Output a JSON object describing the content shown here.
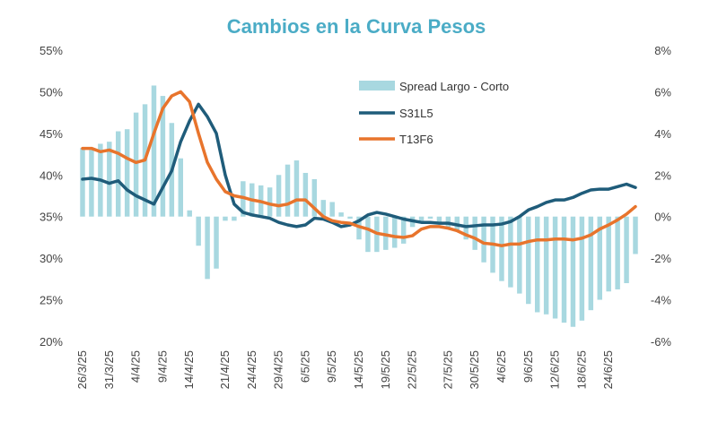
{
  "chart_data": {
    "type": "line",
    "title": "Cambios en la Curva Pesos",
    "xlabel": "",
    "ylabel_left": "",
    "ylabel_right": "",
    "ylim_left": [
      20,
      55
    ],
    "ylim_right": [
      -6,
      8
    ],
    "yticks_left": [
      "20%",
      "25%",
      "30%",
      "35%",
      "40%",
      "45%",
      "50%",
      "55%"
    ],
    "yticks_right": [
      "-6%",
      "-4%",
      "-2%",
      "0%",
      "2%",
      "4%",
      "6%",
      "8%"
    ],
    "x_tick_labels": [
      "26/3/25",
      "31/3/25",
      "4/4/25",
      "9/4/25",
      "14/4/25",
      "21/4/25",
      "24/4/25",
      "29/4/25",
      "6/5/25",
      "9/5/25",
      "14/5/25",
      "19/5/25",
      "22/5/25",
      "27/5/25",
      "30/5/25",
      "4/6/25",
      "9/6/25",
      "12/6/25",
      "18/6/25",
      "24/6/25"
    ],
    "n_points": 63,
    "legend_position": "top-center",
    "colors": {
      "spread": "#a8d8e0",
      "s31l5": "#1f5c7a",
      "t13f6": "#e8742c"
    },
    "series": [
      {
        "name": "Spread Largo - Corto",
        "type": "bar",
        "axis": "right",
        "values": [
          3.3,
          3.2,
          3.5,
          3.6,
          4.1,
          4.2,
          5.0,
          5.4,
          6.3,
          5.8,
          4.5,
          2.8,
          0.3,
          -1.4,
          -3.0,
          -2.5,
          -0.2,
          -0.2,
          1.7,
          1.6,
          1.5,
          1.4,
          2.0,
          2.5,
          2.7,
          2.1,
          1.8,
          0.8,
          0.7,
          0.2,
          -0.1,
          -1.1,
          -1.7,
          -1.7,
          -1.6,
          -1.5,
          -1.3,
          -0.5,
          -0.2,
          -0.1,
          -0.3,
          -0.6,
          -0.7,
          -1.1,
          -1.6,
          -2.2,
          -2.7,
          -3.1,
          -3.4,
          -3.7,
          -4.2,
          -4.6,
          -4.7,
          -4.9,
          -5.1,
          -5.3,
          -5.0,
          -4.5,
          -4.0,
          -3.6,
          -3.5,
          -3.2,
          -1.8
        ]
      },
      {
        "name": "S31L5",
        "type": "line",
        "axis": "left",
        "values": [
          39.5,
          39.6,
          39.4,
          39.0,
          39.3,
          38.2,
          37.5,
          37.0,
          36.5,
          38.5,
          40.5,
          44.0,
          46.5,
          48.5,
          47.0,
          45.0,
          40.0,
          36.5,
          35.5,
          35.2,
          35.0,
          34.8,
          34.3,
          34.0,
          33.8,
          34.0,
          34.8,
          34.7,
          34.3,
          33.8,
          34.0,
          34.5,
          35.2,
          35.5,
          35.3,
          35.0,
          34.7,
          34.5,
          34.3,
          34.3,
          34.2,
          34.2,
          34.0,
          33.8,
          33.9,
          34.0,
          34.0,
          34.1,
          34.4,
          35.0,
          35.8,
          36.2,
          36.7,
          37.0,
          37.0,
          37.3,
          37.8,
          38.2,
          38.3,
          38.3,
          38.6,
          38.9,
          38.5
        ]
      },
      {
        "name": "T13F6",
        "type": "line",
        "axis": "left",
        "values": [
          43.2,
          43.2,
          42.8,
          43.0,
          42.6,
          42.0,
          41.5,
          41.8,
          45.0,
          48.0,
          49.5,
          50.0,
          48.8,
          45.0,
          41.5,
          39.5,
          38.0,
          37.5,
          37.3,
          37.0,
          36.8,
          36.5,
          36.3,
          36.5,
          37.0,
          37.0,
          36.0,
          35.0,
          34.5,
          34.3,
          34.2,
          33.8,
          33.5,
          33.0,
          32.8,
          32.6,
          32.5,
          32.7,
          33.5,
          33.8,
          33.8,
          33.6,
          33.3,
          32.8,
          32.4,
          31.8,
          31.7,
          31.5,
          31.7,
          31.7,
          32.0,
          32.2,
          32.2,
          32.3,
          32.3,
          32.2,
          32.4,
          32.8,
          33.5,
          34.0,
          34.6,
          35.3,
          36.2
        ]
      }
    ]
  }
}
